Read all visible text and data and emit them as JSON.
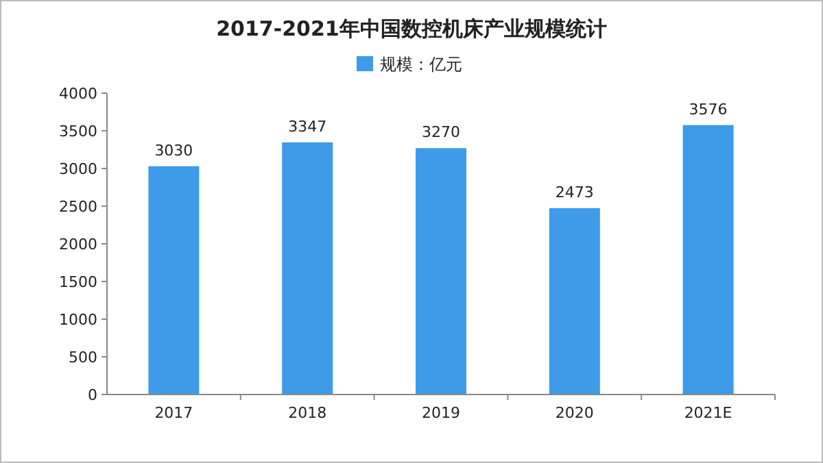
{
  "chart_data": {
    "type": "bar",
    "title": "2017-2021年中国数控机床产业规模统计",
    "categories": [
      "2017",
      "2018",
      "2019",
      "2020",
      "2021E"
    ],
    "series": [
      {
        "name": "规模：亿元",
        "color": "#3d9be9",
        "values": [
          3030,
          3347,
          3270,
          2473,
          3576
        ]
      }
    ],
    "ylim": [
      0,
      4000
    ],
    "yticks": [
      0,
      500,
      1000,
      1500,
      2000,
      2500,
      3000,
      3500,
      4000
    ],
    "grid": false,
    "legend": "top",
    "data_labels": true
  }
}
